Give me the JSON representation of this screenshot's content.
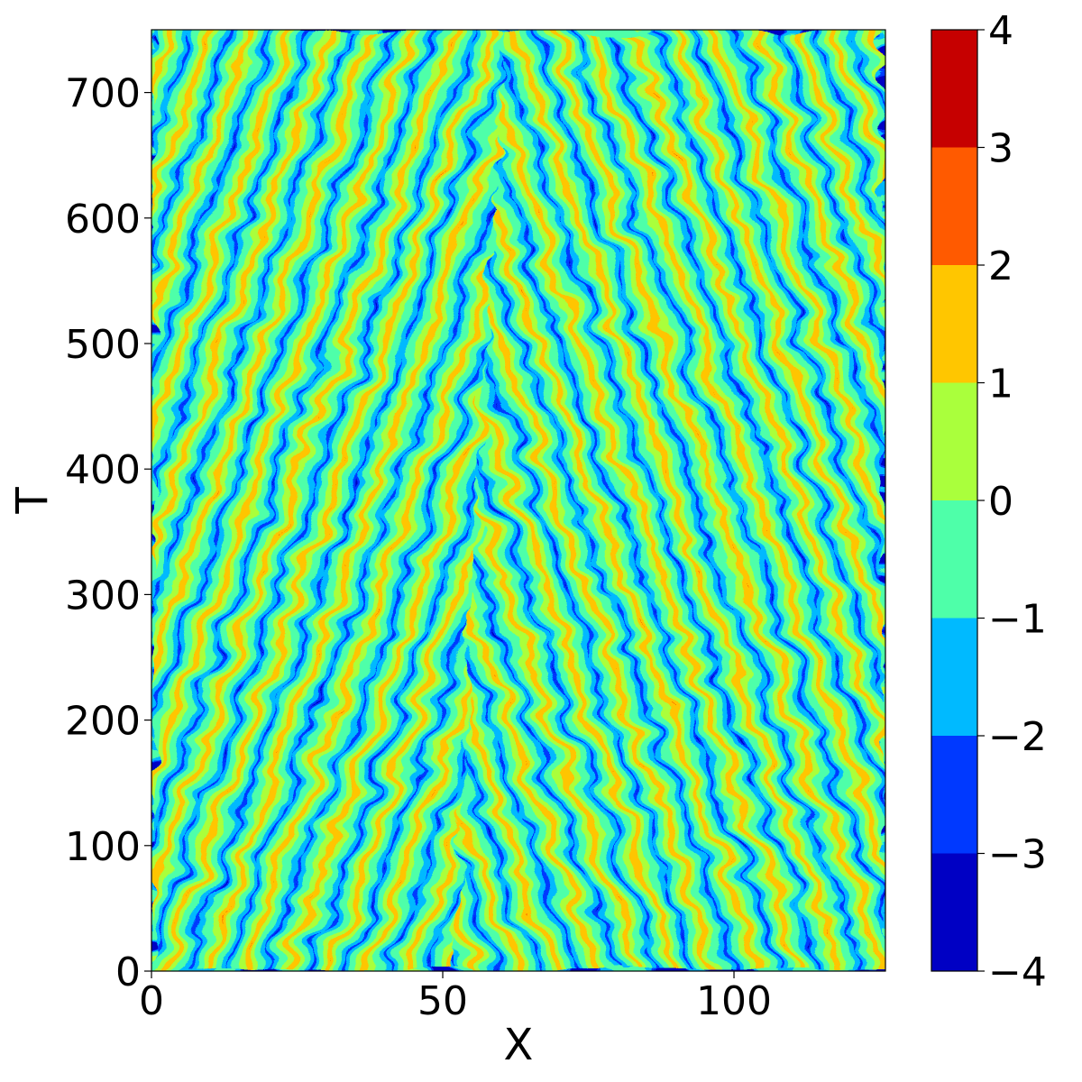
{
  "chart_data": {
    "type": "heatmap",
    "title": "",
    "xlabel": "X",
    "ylabel": "T",
    "xlim": [
      0,
      126
    ],
    "ylim": [
      0,
      750
    ],
    "xticks": [
      0,
      50,
      100
    ],
    "yticks": [
      0,
      100,
      200,
      300,
      400,
      500,
      600,
      700
    ],
    "xtick_labels": [
      "0",
      "50",
      "100"
    ],
    "ytick_labels": [
      "0",
      "100",
      "200",
      "300",
      "400",
      "500",
      "600",
      "700"
    ],
    "colorbar": {
      "levels": [
        -4,
        -3,
        -2,
        -1,
        0,
        1,
        2,
        3,
        4
      ],
      "tick_labels": [
        "−4",
        "−3",
        "−2",
        "−1",
        "0",
        "1",
        "2",
        "3",
        "4"
      ],
      "colors": [
        "#0000c4",
        "#0039ff",
        "#00baff",
        "#4effa9",
        "#aaff3c",
        "#ffc600",
        "#ff5a00",
        "#c60000"
      ]
    },
    "grid": false,
    "colormap": "jet"
  }
}
